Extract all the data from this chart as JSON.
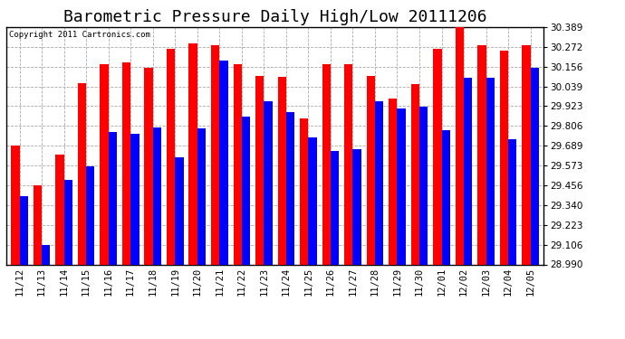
{
  "title": "Barometric Pressure Daily High/Low 20111206",
  "copyright": "Copyright 2011 Cartronics.com",
  "background_color": "#ffffff",
  "bar_width": 0.38,
  "categories": [
    "11/12",
    "11/13",
    "11/14",
    "11/15",
    "11/16",
    "11/17",
    "11/18",
    "11/19",
    "11/20",
    "11/21",
    "11/22",
    "11/23",
    "11/24",
    "11/25",
    "11/26",
    "11/27",
    "11/28",
    "11/29",
    "11/30",
    "12/01",
    "12/02",
    "12/03",
    "12/04",
    "12/05"
  ],
  "highs": [
    29.69,
    29.456,
    29.64,
    30.06,
    30.17,
    30.18,
    30.15,
    30.26,
    30.295,
    30.285,
    30.17,
    30.1,
    30.095,
    29.85,
    30.17,
    30.17,
    30.1,
    29.97,
    30.055,
    30.26,
    30.4,
    30.28,
    30.25,
    30.28
  ],
  "lows": [
    29.39,
    29.106,
    29.49,
    29.57,
    29.77,
    29.76,
    29.8,
    29.62,
    29.79,
    30.19,
    29.86,
    29.95,
    29.89,
    29.74,
    29.66,
    29.67,
    29.95,
    29.91,
    29.92,
    29.78,
    30.09,
    30.09,
    29.73,
    30.15
  ],
  "high_color": "#ff0000",
  "low_color": "#0000ff",
  "ylim_min": 28.99,
  "ylim_max": 30.389,
  "yticks": [
    28.99,
    29.106,
    29.223,
    29.34,
    29.456,
    29.573,
    29.689,
    29.806,
    29.923,
    30.039,
    30.156,
    30.272,
    30.389
  ],
  "grid_color": "#aaaaaa",
  "title_fontsize": 13,
  "tick_fontsize": 7.5,
  "copyright_fontsize": 6.5
}
